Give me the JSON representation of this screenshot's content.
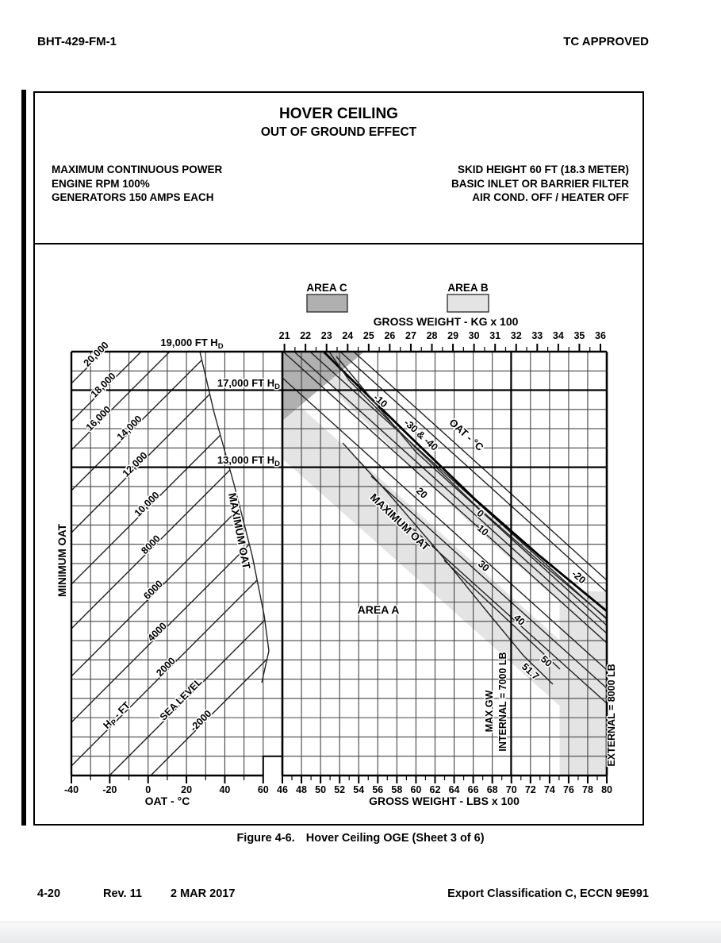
{
  "page": {
    "header_left": "BHT-429-FM-1",
    "header_right": "TC APPROVED",
    "caption": {
      "prefix": "Figure 4-6.",
      "text": "Hover Ceiling OGE (Sheet 3 of 6)"
    },
    "footer": {
      "page_num": "4-20",
      "rev": "Rev. 11",
      "date": "2 MAR 2017",
      "right": "Export Classification C, ECCN 9E991"
    }
  },
  "figure": {
    "title": "HOVER CEILING",
    "subtitle": "OUT OF GROUND EFFECT",
    "conditions_left": [
      "MAXIMUM CONTINUOUS POWER",
      "ENGINE RPM 100%",
      "GENERATORS 150 AMPS EACH"
    ],
    "conditions_right": [
      "SKID HEIGHT 60 FT (18.3 METER)",
      "BASIC INLET OR BARRIER FILTER",
      "AIR COND. OFF  /  HEATER OFF"
    ],
    "legend": {
      "area_c": {
        "label": "AREA C",
        "color": "#b0b0b0"
      },
      "area_b": {
        "label": "AREA B",
        "color": "#e4e4e4"
      }
    }
  },
  "chart_data": {
    "type": "nomograph",
    "title": "HOVER CEILING OUT OF GROUND EFFECT",
    "grid": "on",
    "colors": {
      "area_c": "#b0b0b0",
      "area_b": "#e4e4e4",
      "line": "#222222"
    },
    "left_panel": {
      "x_axis": {
        "label": "OAT  -  °C",
        "range": [
          -40,
          60
        ],
        "tick_labels": [
          "-40",
          "-20",
          "0",
          "20",
          "40",
          "60"
        ],
        "minor_step": 10
      },
      "row_spacing_ft": 1000,
      "top_row_hd_ft": 19000,
      "hp_lines": [
        "20,000",
        "18,000",
        "16,000",
        "14,000",
        "12,000",
        "10,000",
        "8000",
        "6000",
        "4000",
        "2000",
        "SEA LEVEL",
        "-2000"
      ],
      "hp_family_label": {
        "main": "H",
        "sub": "P",
        "rest": " - FT"
      },
      "hd_callouts": {
        "top": {
          "main": "19,000 FT H",
          "sub": "D"
        },
        "mid": {
          "main": "17,000 FT H",
          "sub": "D"
        },
        "low": {
          "main": "13,000 FT H",
          "sub": "D"
        }
      },
      "min_oat_label": "MINIMUM OAT",
      "max_oat_label": "MAXIMUM OAT"
    },
    "right_panel": {
      "x_axis_bottom": {
        "label": "GROSS WEIGHT  -  LBS x 100",
        "range": [
          46,
          80
        ],
        "tick_labels": [
          "46",
          "48",
          "50",
          "52",
          "54",
          "56",
          "58",
          "60",
          "62",
          "64",
          "66",
          "68",
          "70",
          "72",
          "74",
          "76",
          "78",
          "80"
        ],
        "minor_step": 1
      },
      "x_axis_top": {
        "label": "GROSS WEIGHT  -  KG x 100",
        "range": [
          21,
          36
        ],
        "tick_labels": [
          "21",
          "22",
          "23",
          "24",
          "25",
          "26",
          "27",
          "28",
          "29",
          "30",
          "31",
          "32",
          "33",
          "34",
          "35",
          "36"
        ],
        "minor_step": 0.5
      },
      "oat_line_labels_c": {
        "n0": "0",
        "n10": "10",
        "m10": "-10",
        "m20": "-20",
        "m30_40": "-30 & -40",
        "n20": "20",
        "n30": "30",
        "n40": "40",
        "n50": "50",
        "n51_7": "51.7"
      },
      "oat_family_label": "OAT - °C",
      "max_oat_label": "MAXIMUM OAT",
      "area_a_label": "AREA A",
      "limits": {
        "max_gw_line1": "MAX GW",
        "max_gw_line2": "INTERNAL = 7000 LB",
        "external": "EXTERNAL = 8000 LB"
      }
    }
  }
}
